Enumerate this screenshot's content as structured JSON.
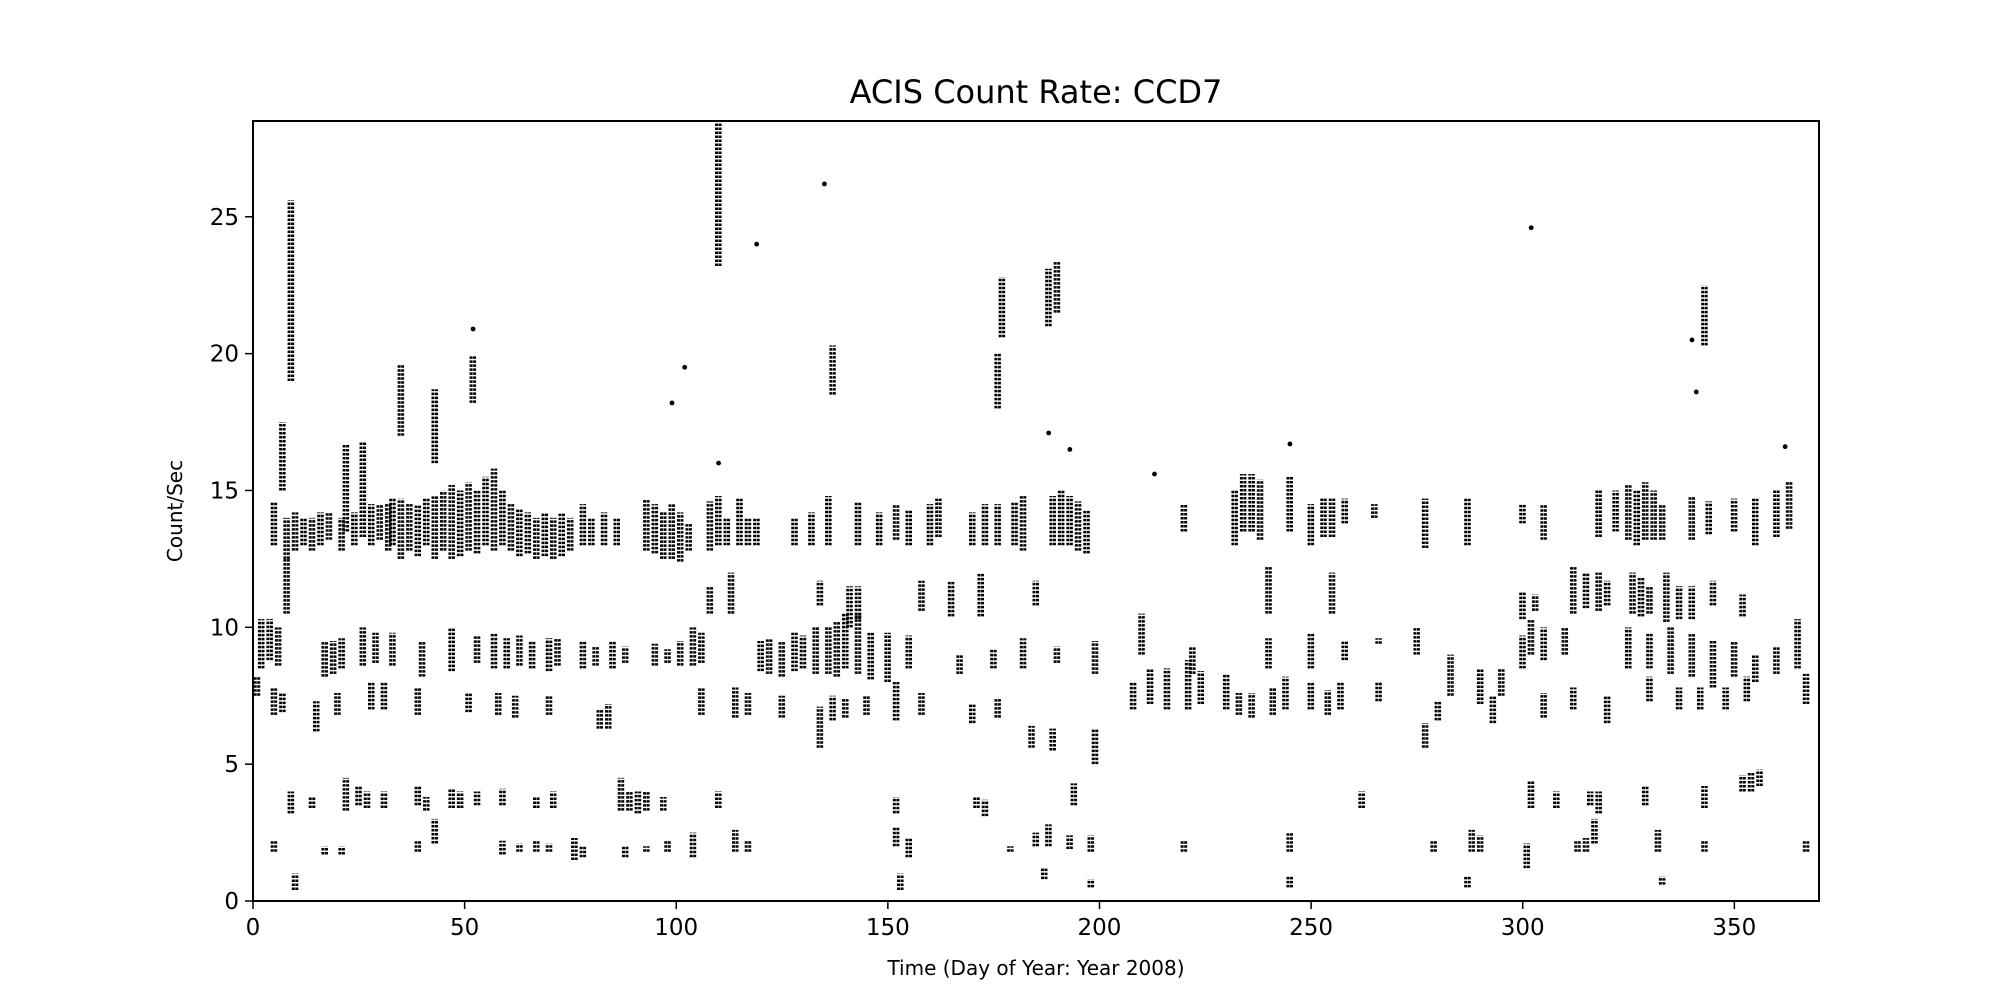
{
  "chart_data": {
    "type": "scatter",
    "title": "ACIS Count Rate: CCD7",
    "xlabel": "Time (Day of Year: Year 2008)",
    "ylabel": "Count/Sec",
    "xlim": [
      0,
      370
    ],
    "ylim": [
      0,
      28.5
    ],
    "xticks": [
      0,
      50,
      100,
      150,
      200,
      250,
      300,
      350
    ],
    "yticks": [
      0,
      5,
      10,
      15,
      20,
      25
    ],
    "grid": false,
    "marker_color": "#000000",
    "note": "points grouped as vertical streaks [day, min, max] of dense samples",
    "streaks": [
      [
        5,
        13,
        14.6
      ],
      [
        8,
        12.5,
        14
      ],
      [
        10,
        12.8,
        14.2
      ],
      [
        12,
        13,
        14
      ],
      [
        14,
        12.8,
        14
      ],
      [
        16,
        13,
        14.2
      ],
      [
        18,
        13.2,
        14.2
      ],
      [
        21,
        12.8,
        14
      ],
      [
        22,
        13.5,
        16.7
      ],
      [
        24,
        13,
        14.2
      ],
      [
        26,
        13.3,
        16.8
      ],
      [
        28,
        13,
        14.5
      ],
      [
        30,
        13.2,
        14.5
      ],
      [
        32,
        12.8,
        14.5
      ],
      [
        33,
        13,
        14.7
      ],
      [
        35,
        12.5,
        14.7
      ],
      [
        37,
        12.8,
        14.5
      ],
      [
        39,
        12.6,
        14.5
      ],
      [
        41,
        13,
        14.7
      ],
      [
        43,
        12.5,
        14.8
      ],
      [
        45,
        12.8,
        15
      ],
      [
        47,
        12.5,
        15.2
      ],
      [
        49,
        12.6,
        15
      ],
      [
        51,
        12.8,
        15.3
      ],
      [
        53,
        12.7,
        15
      ],
      [
        55,
        13,
        15.5
      ],
      [
        57,
        12.8,
        15.8
      ],
      [
        59,
        13,
        15
      ],
      [
        61,
        12.8,
        14.5
      ],
      [
        63,
        12.6,
        14.3
      ],
      [
        65,
        12.7,
        14.2
      ],
      [
        67,
        12.5,
        14
      ],
      [
        69,
        12.6,
        14.2
      ],
      [
        71,
        12.5,
        14
      ],
      [
        73,
        12.6,
        14.2
      ],
      [
        75,
        12.8,
        14
      ],
      [
        78,
        13,
        14.5
      ],
      [
        80,
        13,
        14
      ],
      [
        83,
        13,
        14.2
      ],
      [
        86,
        13,
        14
      ],
      [
        93,
        12.8,
        14.7
      ],
      [
        95,
        12.7,
        14.5
      ],
      [
        97,
        12.5,
        14.2
      ],
      [
        99,
        12.5,
        14.5
      ],
      [
        101,
        12.4,
        14.2
      ],
      [
        103,
        12.8,
        13.8
      ],
      [
        108,
        12.8,
        14.6
      ],
      [
        110,
        13,
        14.8
      ],
      [
        112,
        13,
        14
      ],
      [
        115,
        13,
        14.7
      ],
      [
        117,
        13,
        14
      ],
      [
        119,
        13,
        14
      ],
      [
        128,
        13,
        14
      ],
      [
        132,
        13,
        14.2
      ],
      [
        136,
        13,
        14.8
      ],
      [
        143,
        13,
        14.6
      ],
      [
        148,
        13,
        14.2
      ],
      [
        152,
        13.2,
        14.5
      ],
      [
        155,
        13,
        14.3
      ],
      [
        160,
        13,
        14.5
      ],
      [
        162,
        13.3,
        14.7
      ],
      [
        170,
        13,
        14.2
      ],
      [
        173,
        13,
        14.5
      ],
      [
        176,
        13,
        14.5
      ],
      [
        180,
        13,
        14.6
      ],
      [
        182,
        12.8,
        14.8
      ],
      [
        189,
        13,
        14.8
      ],
      [
        191,
        13,
        15
      ],
      [
        193,
        13,
        14.8
      ],
      [
        195,
        12.8,
        14.6
      ],
      [
        197,
        12.7,
        14.3
      ],
      [
        220,
        13.5,
        14.5
      ],
      [
        232,
        13,
        15
      ],
      [
        234,
        13.5,
        15.6
      ],
      [
        236,
        13.5,
        15.6
      ],
      [
        238,
        13.2,
        15.4
      ],
      [
        245,
        13.5,
        15.5
      ],
      [
        250,
        13,
        14.5
      ],
      [
        253,
        13.3,
        14.7
      ],
      [
        255,
        13.3,
        14.7
      ],
      [
        258,
        13.8,
        14.7
      ],
      [
        265,
        14,
        14.5
      ],
      [
        277,
        12.9,
        14.7
      ],
      [
        287,
        13,
        14.7
      ],
      [
        300,
        13.8,
        14.5
      ],
      [
        305,
        13.2,
        14.5
      ],
      [
        318,
        13.3,
        15
      ],
      [
        322,
        13.5,
        15
      ],
      [
        325,
        13.2,
        15.2
      ],
      [
        327,
        13,
        15
      ],
      [
        329,
        13.2,
        15.3
      ],
      [
        331,
        13.2,
        15
      ],
      [
        333,
        13.2,
        14.5
      ],
      [
        340,
        13.2,
        14.8
      ],
      [
        344,
        13.4,
        14.6
      ],
      [
        350,
        13.5,
        14.7
      ],
      [
        355,
        13,
        14.7
      ],
      [
        360,
        13.3,
        15
      ],
      [
        363,
        13.6,
        15.3
      ],
      [
        2,
        8.5,
        10.3
      ],
      [
        4,
        8.8,
        10.3
      ],
      [
        6,
        8.6,
        10
      ],
      [
        17,
        8.2,
        9.5
      ],
      [
        19,
        8.3,
        9.5
      ],
      [
        21,
        8.5,
        9.6
      ],
      [
        26,
        8.6,
        10
      ],
      [
        29,
        8.7,
        9.8
      ],
      [
        33,
        8.6,
        9.8
      ],
      [
        40,
        8.2,
        9.5
      ],
      [
        47,
        8.4,
        10
      ],
      [
        53,
        8.7,
        9.7
      ],
      [
        57,
        8.5,
        9.8
      ],
      [
        60,
        8.5,
        9.6
      ],
      [
        63,
        8.6,
        9.7
      ],
      [
        66,
        8.5,
        9.5
      ],
      [
        70,
        8.4,
        9.6
      ],
      [
        72,
        8.6,
        9.6
      ],
      [
        78,
        8.5,
        9.5
      ],
      [
        81,
        8.6,
        9.3
      ],
      [
        85,
        8.5,
        9.5
      ],
      [
        88,
        8.7,
        9.3
      ],
      [
        95,
        8.6,
        9.4
      ],
      [
        98,
        8.7,
        9.2
      ],
      [
        101,
        8.6,
        9.5
      ],
      [
        104,
        8.6,
        10
      ],
      [
        106,
        8.7,
        9.8
      ],
      [
        120,
        8.4,
        9.5
      ],
      [
        122,
        8.3,
        9.6
      ],
      [
        125,
        8.2,
        9.5
      ],
      [
        128,
        8.4,
        9.8
      ],
      [
        130,
        8.5,
        9.7
      ],
      [
        133,
        8.3,
        10
      ],
      [
        136,
        8.3,
        10
      ],
      [
        138,
        8.2,
        10.2
      ],
      [
        140,
        8.5,
        10.5
      ],
      [
        143,
        8.3,
        10.5
      ],
      [
        146,
        8.1,
        9.8
      ],
      [
        150,
        8,
        9.8
      ],
      [
        155,
        8.5,
        9.7
      ],
      [
        167,
        8.3,
        9
      ],
      [
        175,
        8.5,
        9.2
      ],
      [
        182,
        8.5,
        9.6
      ],
      [
        190,
        8.7,
        9.3
      ],
      [
        199,
        8.3,
        9.5
      ],
      [
        210,
        9,
        10.5
      ],
      [
        222,
        8.3,
        9.3
      ],
      [
        240,
        8.5,
        9.6
      ],
      [
        250,
        8.5,
        9.8
      ],
      [
        258,
        8.8,
        9.5
      ],
      [
        266,
        9.4,
        9.6
      ],
      [
        275,
        9,
        10
      ],
      [
        283,
        7.5,
        9
      ],
      [
        290,
        7.2,
        8.5
      ],
      [
        295,
        7.5,
        8.5
      ],
      [
        300,
        8.5,
        9.7
      ],
      [
        302,
        9,
        10.3
      ],
      [
        305,
        8.8,
        10
      ],
      [
        310,
        9,
        10
      ],
      [
        325,
        8.5,
        10
      ],
      [
        330,
        8.5,
        9.8
      ],
      [
        335,
        8.3,
        10
      ],
      [
        340,
        8.2,
        9.8
      ],
      [
        345,
        7.8,
        9.5
      ],
      [
        350,
        8.2,
        9.5
      ],
      [
        355,
        8,
        9
      ],
      [
        360,
        8.3,
        9.3
      ],
      [
        365,
        8.5,
        10.3
      ],
      [
        1,
        7.5,
        8.2
      ],
      [
        5,
        6.8,
        7.8
      ],
      [
        7,
        6.9,
        7.6
      ],
      [
        15,
        6.2,
        7.3
      ],
      [
        20,
        6.8,
        7.6
      ],
      [
        28,
        7,
        8
      ],
      [
        31,
        7,
        8
      ],
      [
        39,
        6.8,
        7.8
      ],
      [
        51,
        6.9,
        7.6
      ],
      [
        58,
        6.8,
        7.6
      ],
      [
        62,
        6.7,
        7.5
      ],
      [
        70,
        6.8,
        7.5
      ],
      [
        82,
        6.3,
        7
      ],
      [
        84,
        6.3,
        7.2
      ],
      [
        106,
        6.8,
        7.8
      ],
      [
        114,
        6.7,
        7.8
      ],
      [
        117,
        6.8,
        7.6
      ],
      [
        125,
        6.7,
        7.5
      ],
      [
        134,
        5.6,
        7.1
      ],
      [
        137,
        6.6,
        7.5
      ],
      [
        140,
        6.7,
        7.4
      ],
      [
        145,
        6.8,
        7.5
      ],
      [
        152,
        6.6,
        8
      ],
      [
        158,
        6.8,
        7.6
      ],
      [
        170,
        6.5,
        7.2
      ],
      [
        176,
        6.7,
        7.4
      ],
      [
        184,
        5.6,
        6.4
      ],
      [
        189,
        5.5,
        6.3
      ],
      [
        199,
        5,
        6.3
      ],
      [
        208,
        7,
        8
      ],
      [
        212,
        7.2,
        8.5
      ],
      [
        216,
        7,
        8.5
      ],
      [
        221,
        7,
        8.8
      ],
      [
        224,
        7.2,
        8.4
      ],
      [
        230,
        7,
        8.3
      ],
      [
        233,
        6.8,
        7.6
      ],
      [
        236,
        6.7,
        7.6
      ],
      [
        241,
        6.8,
        7.8
      ],
      [
        244,
        7,
        8.2
      ],
      [
        250,
        7,
        8
      ],
      [
        254,
        6.8,
        7.7
      ],
      [
        257,
        7,
        8
      ],
      [
        266,
        7.3,
        8
      ],
      [
        277,
        5.6,
        6.5
      ],
      [
        280,
        6.6,
        7.3
      ],
      [
        293,
        6.5,
        7.5
      ],
      [
        305,
        6.7,
        7.6
      ],
      [
        312,
        7,
        7.8
      ],
      [
        320,
        6.5,
        7.5
      ],
      [
        330,
        7.3,
        8.2
      ],
      [
        337,
        7,
        7.8
      ],
      [
        342,
        7,
        7.8
      ],
      [
        348,
        7,
        7.8
      ],
      [
        353,
        7.3,
        8.2
      ],
      [
        367,
        7.2,
        8.3
      ],
      [
        8,
        10.5,
        12.5
      ],
      [
        108,
        10.5,
        11.5
      ],
      [
        113,
        10.5,
        12
      ],
      [
        134,
        10.8,
        11.7
      ],
      [
        141,
        10,
        11.5
      ],
      [
        143,
        10.3,
        11.5
      ],
      [
        158,
        10.6,
        11.7
      ],
      [
        165,
        10.4,
        11.7
      ],
      [
        172,
        10.4,
        12
      ],
      [
        185,
        10.8,
        11.7
      ],
      [
        240,
        10.5,
        12.2
      ],
      [
        255,
        10.5,
        12
      ],
      [
        300,
        10.3,
        11.3
      ],
      [
        303,
        10.6,
        11.2
      ],
      [
        312,
        10.5,
        12.2
      ],
      [
        315,
        10.7,
        12
      ],
      [
        318,
        10.6,
        12
      ],
      [
        320,
        10.8,
        11.7
      ],
      [
        326,
        10.5,
        12
      ],
      [
        328,
        10.4,
        11.8
      ],
      [
        330,
        10.5,
        11.5
      ],
      [
        334,
        10.2,
        12
      ],
      [
        337,
        10.3,
        11.5
      ],
      [
        340,
        10.3,
        11.5
      ],
      [
        345,
        10.8,
        11.7
      ],
      [
        352,
        10.4,
        11.2
      ],
      [
        9,
        3.2,
        4
      ],
      [
        14,
        3.4,
        3.8
      ],
      [
        22,
        3.3,
        4.5
      ],
      [
        25,
        3.5,
        4.2
      ],
      [
        27,
        3.4,
        4
      ],
      [
        31,
        3.4,
        4
      ],
      [
        39,
        3.5,
        4.2
      ],
      [
        41,
        3.3,
        3.8
      ],
      [
        47,
        3.4,
        4.1
      ],
      [
        49,
        3.4,
        4
      ],
      [
        53,
        3.5,
        4
      ],
      [
        59,
        3.5,
        4.1
      ],
      [
        67,
        3.4,
        3.8
      ],
      [
        71,
        3.4,
        4
      ],
      [
        87,
        3.3,
        4.5
      ],
      [
        89,
        3.3,
        4
      ],
      [
        91,
        3.2,
        4
      ],
      [
        93,
        3.3,
        4
      ],
      [
        97,
        3.3,
        3.8
      ],
      [
        110,
        3.4,
        4
      ],
      [
        152,
        3.2,
        3.8
      ],
      [
        171,
        3.4,
        3.8
      ],
      [
        173,
        3.1,
        3.7
      ],
      [
        194,
        3.5,
        4.3
      ],
      [
        262,
        3.4,
        4
      ],
      [
        302,
        3.4,
        4.4
      ],
      [
        308,
        3.4,
        4
      ],
      [
        316,
        3.5,
        4
      ],
      [
        318,
        3.2,
        4
      ],
      [
        329,
        3.5,
        4.2
      ],
      [
        343,
        3.4,
        4.2
      ],
      [
        352,
        4,
        4.6
      ],
      [
        354,
        4,
        4.7
      ],
      [
        356,
        4.2,
        4.8
      ],
      [
        5,
        1.8,
        2.2
      ],
      [
        17,
        1.7,
        2
      ],
      [
        21,
        1.7,
        2
      ],
      [
        39,
        1.8,
        2.2
      ],
      [
        43,
        2.1,
        3
      ],
      [
        59,
        1.7,
        2.2
      ],
      [
        63,
        1.8,
        2.1
      ],
      [
        67,
        1.8,
        2.2
      ],
      [
        70,
        1.8,
        2.1
      ],
      [
        76,
        1.5,
        2.3
      ],
      [
        78,
        1.6,
        2
      ],
      [
        88,
        1.6,
        2
      ],
      [
        93,
        1.8,
        2
      ],
      [
        98,
        1.8,
        2.2
      ],
      [
        104,
        1.6,
        2.5
      ],
      [
        114,
        1.8,
        2.6
      ],
      [
        117,
        1.8,
        2.2
      ],
      [
        152,
        2,
        2.7
      ],
      [
        155,
        1.6,
        2.3
      ],
      [
        179,
        1.8,
        2
      ],
      [
        185,
        2,
        2.5
      ],
      [
        188,
        2,
        2.8
      ],
      [
        193,
        1.9,
        2.4
      ],
      [
        198,
        1.8,
        2.4
      ],
      [
        220,
        1.8,
        2.2
      ],
      [
        245,
        1.8,
        2.5
      ],
      [
        279,
        1.8,
        2.2
      ],
      [
        288,
        1.8,
        2.6
      ],
      [
        290,
        1.8,
        2.4
      ],
      [
        301,
        1.2,
        2.1
      ],
      [
        313,
        1.8,
        2.2
      ],
      [
        315,
        1.8,
        2.3
      ],
      [
        317,
        2.1,
        3
      ],
      [
        332,
        1.8,
        2.6
      ],
      [
        343,
        1.8,
        2.2
      ],
      [
        367,
        1.8,
        2.2
      ],
      [
        10,
        0.4,
        1
      ],
      [
        153,
        0.4,
        1
      ],
      [
        187,
        0.8,
        1.2
      ],
      [
        198,
        0.5,
        0.8
      ],
      [
        245,
        0.5,
        0.9
      ],
      [
        287,
        0.5,
        0.9
      ],
      [
        333,
        0.6,
        0.9
      ],
      [
        7,
        15,
        17.5
      ],
      [
        9,
        19,
        25.6
      ],
      [
        35,
        17,
        19.6
      ],
      [
        43,
        16,
        18.7
      ],
      [
        52,
        18.2,
        19.9
      ],
      [
        110,
        23.2,
        28.5
      ],
      [
        137,
        18.5,
        20.3
      ],
      [
        176,
        18,
        20
      ],
      [
        177,
        20.6,
        22.8
      ],
      [
        188,
        21,
        23.1
      ],
      [
        190,
        21.5,
        23.4
      ],
      [
        343,
        20.3,
        22.5
      ]
    ],
    "outliers": [
      [
        135,
        26.2
      ],
      [
        119,
        24
      ],
      [
        302,
        24.6
      ],
      [
        52,
        20.9
      ],
      [
        102,
        19.5
      ],
      [
        99,
        18.2
      ],
      [
        245,
        16.7
      ],
      [
        362,
        16.6
      ],
      [
        110,
        16
      ],
      [
        193,
        16.5
      ],
      [
        188,
        17.1
      ],
      [
        341,
        18.6
      ],
      [
        340,
        20.5
      ],
      [
        213,
        15.6
      ]
    ]
  }
}
